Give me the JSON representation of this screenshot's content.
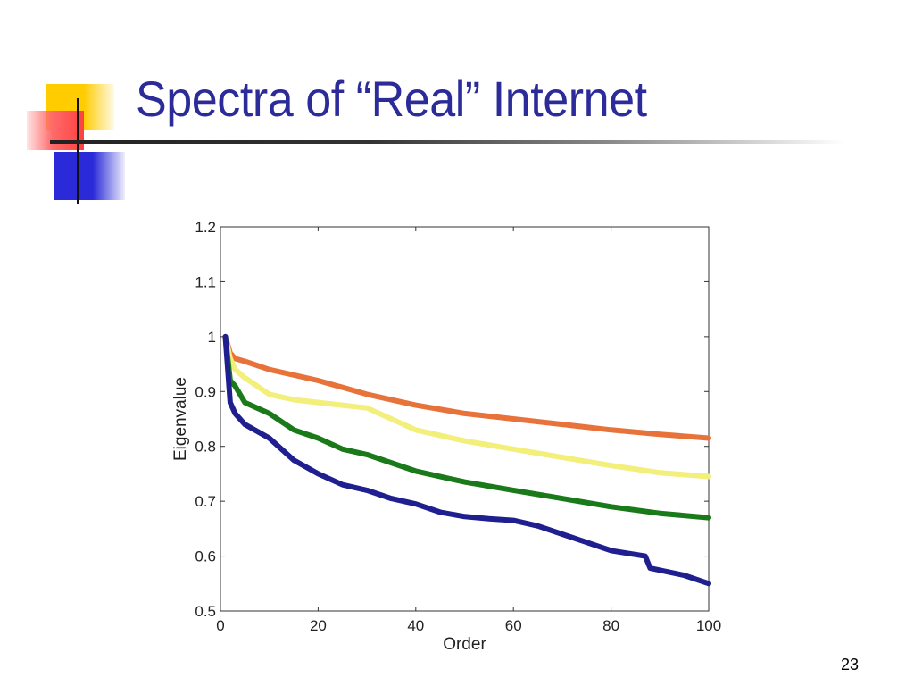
{
  "slide": {
    "title": "Spectra of “Real” Internet",
    "page_number": "23"
  },
  "colors": {
    "title": "#2b2b9a",
    "deco_yellow": "#ffcc00",
    "deco_red": "#ff4040",
    "deco_blue": "#2a2ad8"
  },
  "chart_data": {
    "type": "line",
    "title": "",
    "xlabel": "Order",
    "ylabel": "Eigenvalue",
    "xlim": [
      0,
      100
    ],
    "ylim": [
      0.5,
      1.2
    ],
    "xticks": [
      0,
      20,
      40,
      60,
      80,
      100
    ],
    "yticks": [
      0.5,
      0.6,
      0.7,
      0.8,
      0.9,
      1,
      1.1,
      1.2
    ],
    "ytick_labels": [
      "0.5",
      "0.6",
      "0.7",
      "0.8",
      "0.9",
      "1",
      "1.1",
      "1.2"
    ],
    "grid": false,
    "series": [
      {
        "color": "#e8733a",
        "x": [
          1,
          2,
          3,
          5,
          10,
          20,
          30,
          40,
          50,
          60,
          70,
          80,
          90,
          100
        ],
        "y": [
          1.0,
          0.97,
          0.96,
          0.955,
          0.94,
          0.92,
          0.895,
          0.875,
          0.86,
          0.85,
          0.84,
          0.83,
          0.822,
          0.815
        ]
      },
      {
        "color": "#f2ef7a",
        "x": [
          1,
          2,
          3,
          5,
          10,
          15,
          20,
          30,
          40,
          50,
          60,
          70,
          80,
          90,
          100
        ],
        "y": [
          1.0,
          0.96,
          0.94,
          0.925,
          0.895,
          0.885,
          0.88,
          0.87,
          0.83,
          0.81,
          0.795,
          0.78,
          0.765,
          0.752,
          0.745
        ]
      },
      {
        "color": "#1a7a1a",
        "x": [
          1,
          2,
          3,
          5,
          10,
          15,
          20,
          25,
          30,
          35,
          40,
          50,
          60,
          70,
          80,
          90,
          100
        ],
        "y": [
          1.0,
          0.92,
          0.91,
          0.88,
          0.86,
          0.83,
          0.815,
          0.795,
          0.785,
          0.77,
          0.755,
          0.735,
          0.72,
          0.705,
          0.69,
          0.678,
          0.67
        ]
      },
      {
        "color": "#1f1f8f",
        "x": [
          1,
          2,
          3,
          5,
          8,
          10,
          15,
          20,
          25,
          30,
          35,
          40,
          45,
          50,
          55,
          60,
          65,
          70,
          75,
          80,
          87,
          88,
          95,
          100
        ],
        "y": [
          1.0,
          0.88,
          0.86,
          0.84,
          0.825,
          0.815,
          0.775,
          0.75,
          0.73,
          0.72,
          0.705,
          0.695,
          0.68,
          0.672,
          0.668,
          0.665,
          0.655,
          0.64,
          0.625,
          0.61,
          0.6,
          0.578,
          0.565,
          0.55
        ]
      }
    ]
  }
}
